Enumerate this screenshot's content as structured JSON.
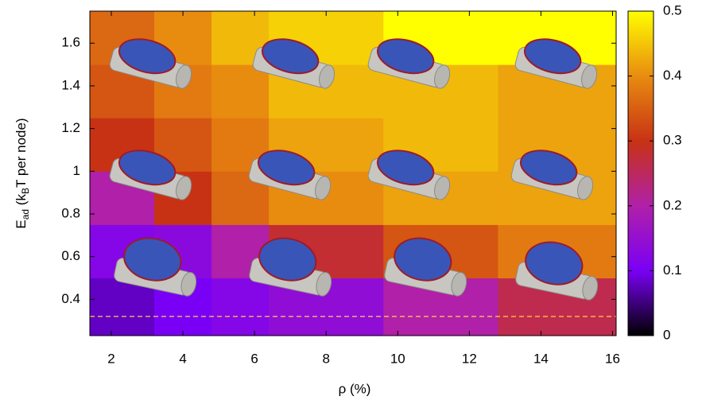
{
  "chart_data": {
    "type": "heatmap",
    "xlabel": "ρ (%)",
    "ylabel_parts": [
      "E",
      "ad",
      " (k",
      "B",
      "T per node)"
    ],
    "x_edges": [
      1.4,
      3.2,
      4.8,
      6.4,
      9.6,
      12.8,
      16.1
    ],
    "y_edges": [
      0.23,
      0.5,
      0.75,
      1.0,
      1.25,
      1.5,
      1.75
    ],
    "z": [
      [
        0.08,
        0.1,
        0.12,
        0.14,
        0.2,
        0.26
      ],
      [
        0.12,
        0.13,
        0.2,
        0.28,
        0.34,
        0.38
      ],
      [
        0.2,
        0.3,
        0.36,
        0.4,
        0.42,
        0.42
      ],
      [
        0.3,
        0.34,
        0.38,
        0.42,
        0.44,
        0.42
      ],
      [
        0.34,
        0.38,
        0.4,
        0.44,
        0.44,
        0.42
      ],
      [
        0.36,
        0.4,
        0.44,
        0.46,
        0.5,
        0.5
      ]
    ],
    "xlim": [
      1.4,
      16.1
    ],
    "xticks": [
      2,
      4,
      6,
      8,
      10,
      12,
      14,
      16
    ],
    "ylim": [
      0.23,
      1.75
    ],
    "yticks": [
      0.4,
      0.6,
      0.8,
      1,
      1.2,
      1.4,
      1.6
    ],
    "clim": [
      0,
      0.5
    ],
    "cticks": [
      0,
      0.1,
      0.2,
      0.3,
      0.4,
      0.5
    ],
    "colormap": [
      "#000000",
      "#7a00f5",
      "#b020a8",
      "#c83214",
      "#e88c10",
      "#ffff00"
    ],
    "hline": {
      "value": 0.32,
      "color": "#ffd24a"
    }
  }
}
